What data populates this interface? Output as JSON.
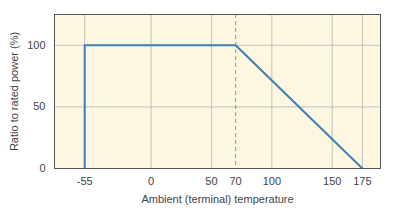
{
  "chart_data": {
    "type": "line",
    "x": [
      -55,
      -55,
      70,
      175
    ],
    "values": [
      0,
      100,
      100,
      0
    ],
    "color": "#3d80b6",
    "xlabel": "Ambient (terminal) temperature",
    "ylabel": "Ratio to rated power (%)",
    "xlim": [
      -80,
      190
    ],
    "ylim": [
      0,
      125
    ],
    "xticks": [
      -55,
      0,
      50,
      70,
      100,
      150,
      175
    ],
    "yticks": [
      0,
      50,
      100
    ],
    "reference_line_x": 70,
    "grid": true
  }
}
